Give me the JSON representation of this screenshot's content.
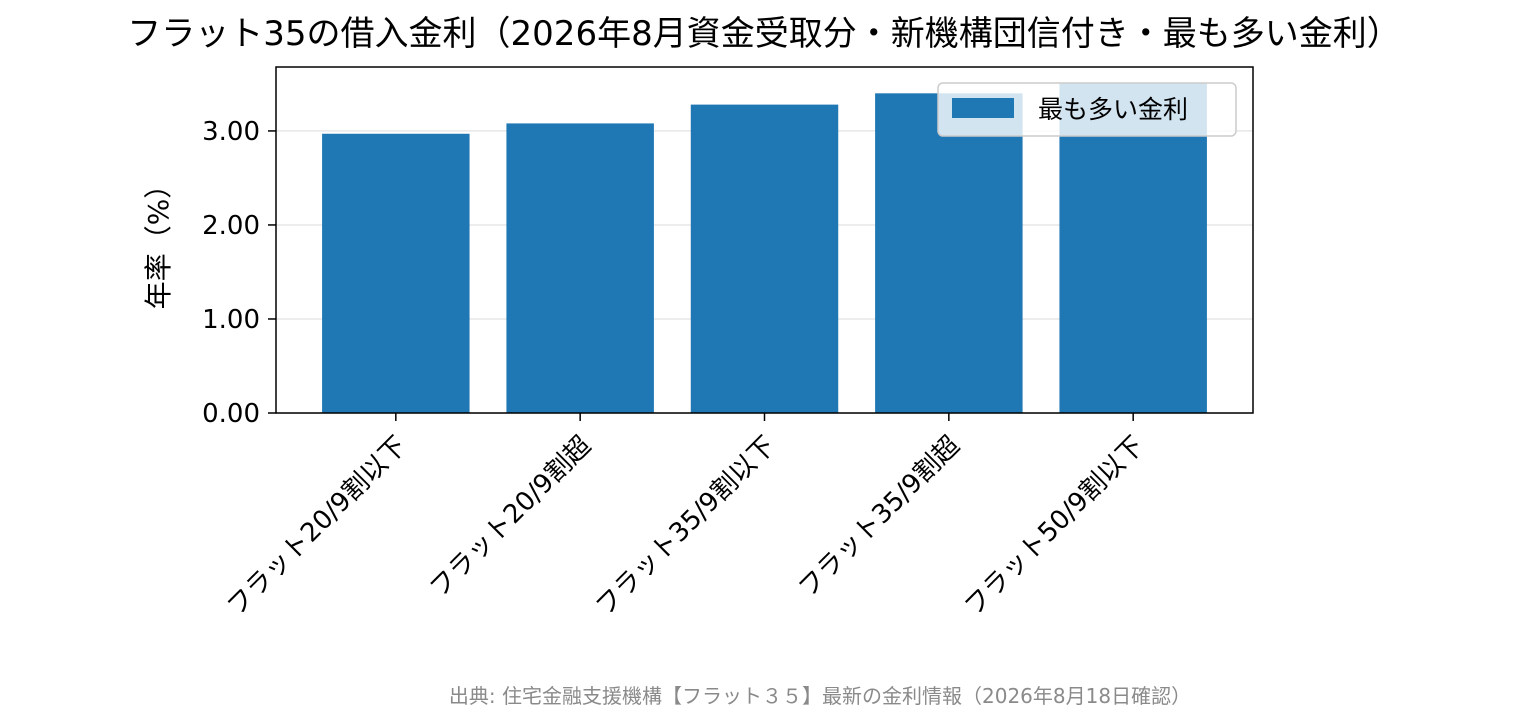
{
  "chart_data": {
    "type": "bar",
    "title": "フラット35の借入金利（2026年8月資金受取分・新機構団信付き・最も多い金利）",
    "xlabel": "",
    "ylabel": "年率（%）",
    "categories": [
      "フラット20/9割以下",
      "フラット20/9割超",
      "フラット35/9割以下",
      "フラット35/9割超",
      "フラット50/9割以下"
    ],
    "series": [
      {
        "name": "最も多い金利",
        "values": [
          2.97,
          3.08,
          3.28,
          3.4,
          3.51
        ],
        "color": "#1f77b4"
      }
    ],
    "yticks": [
      "0.00",
      "1.00",
      "2.00",
      "3.00"
    ],
    "ylim": [
      0,
      3.68
    ],
    "grid": "horizontal",
    "legend_position": "top-right"
  },
  "source_note": "出典: 住宅金融支援機構【フラット３５】最新の金利情報（2026年8月18日確認）"
}
